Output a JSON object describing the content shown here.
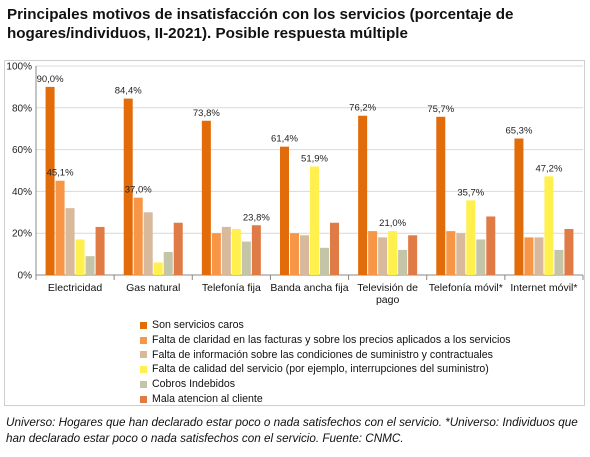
{
  "title": "Principales motivos de insatisfacción con los servicios (porcentaje de hogares/individuos, II-2021). Posible respuesta múltiple",
  "footnote": "Universo: Hogares que han declarado estar poco o nada satisfechos con el servicio. *Universo: Individuos que han declarado estar poco o nada satisfechos con el servicio. Fuente: CNMC.",
  "chart_data": {
    "type": "bar",
    "categories": [
      [
        "Electricidad"
      ],
      [
        "Gas natural"
      ],
      [
        "Telefonía fija"
      ],
      [
        "Banda ancha fija"
      ],
      [
        "Televisión de",
        "pago"
      ],
      [
        "Telefonía móvil*"
      ],
      [
        "Internet móvil*"
      ]
    ],
    "y_ticks": [
      "0%",
      "20%",
      "40%",
      "60%",
      "80%",
      "100%"
    ],
    "ylim": [
      0,
      100
    ],
    "grid": true,
    "legend_position": "bottom",
    "series": [
      {
        "name": "Son servicios caros",
        "color": "#E36C0A",
        "values": [
          90.0,
          84.4,
          73.8,
          61.4,
          76.2,
          75.7,
          65.3
        ]
      },
      {
        "name": "Falta de claridad en las facturas y sobre los precios aplicados a los servicios",
        "color": "#F79646",
        "values": [
          45.1,
          37.0,
          20,
          20,
          21,
          21,
          18
        ]
      },
      {
        "name": "Falta de información sobre las condiciones de suministro y contractuales",
        "color": "#D9B99B",
        "values": [
          32,
          30,
          23,
          19,
          18,
          20,
          18
        ]
      },
      {
        "name": "Falta de calidad del servicio (por ejemplo, interrupciones del suministro)",
        "color": "#FFF04D",
        "values": [
          17,
          6,
          22,
          51.9,
          21.0,
          35.7,
          47.2
        ]
      },
      {
        "name": "Cobros Indebidos",
        "color": "#C4C4A8",
        "values": [
          9,
          11,
          16,
          13,
          12,
          17,
          12
        ]
      },
      {
        "name": "Mala atencion al cliente",
        "color": "#E07B46",
        "values": [
          23,
          25,
          23.8,
          25,
          19,
          28,
          22
        ]
      }
    ],
    "data_labels": [
      {
        "series": 0,
        "category": 0,
        "text": "90,0%"
      },
      {
        "series": 1,
        "category": 0,
        "text": "45,1%"
      },
      {
        "series": 0,
        "category": 1,
        "text": "84,4%"
      },
      {
        "series": 1,
        "category": 1,
        "text": "37,0%"
      },
      {
        "series": 0,
        "category": 2,
        "text": "73,8%"
      },
      {
        "series": 5,
        "category": 2,
        "text": "23,8%"
      },
      {
        "series": 0,
        "category": 3,
        "text": "61,4%"
      },
      {
        "series": 3,
        "category": 3,
        "text": "51,9%"
      },
      {
        "series": 0,
        "category": 4,
        "text": "76,2%"
      },
      {
        "series": 3,
        "category": 4,
        "text": "21,0%"
      },
      {
        "series": 0,
        "category": 5,
        "text": "75,7%"
      },
      {
        "series": 3,
        "category": 5,
        "text": "35,7%"
      },
      {
        "series": 0,
        "category": 6,
        "text": "65,3%"
      },
      {
        "series": 3,
        "category": 6,
        "text": "47,2%"
      }
    ]
  }
}
